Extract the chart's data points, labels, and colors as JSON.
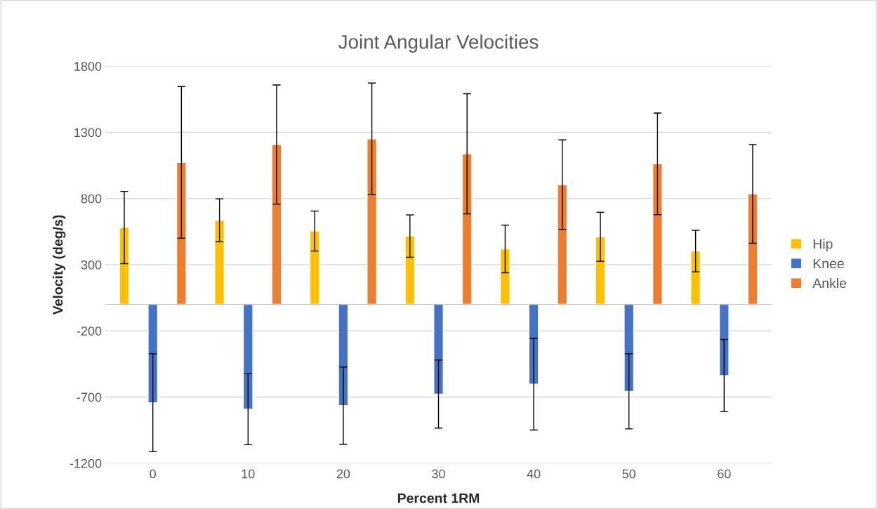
{
  "chart_data": {
    "type": "bar",
    "title": "Joint Angular Velocities",
    "xlabel": "Percent 1RM",
    "ylabel": "Velocity (deg/s)",
    "categories": [
      "0",
      "10",
      "20",
      "30",
      "40",
      "50",
      "60"
    ],
    "series": [
      {
        "name": "Hip",
        "color": "#ffc000",
        "values": [
          581,
          635,
          554,
          516,
          419,
          511,
          403
        ],
        "errors": [
          273,
          162,
          151,
          160,
          180,
          185,
          157
        ]
      },
      {
        "name": "Knee",
        "color": "#4472c4",
        "values": [
          -743,
          -792,
          -765,
          -678,
          -603,
          -657,
          -538
        ],
        "errors": [
          370,
          268,
          292,
          257,
          346,
          284,
          273
        ]
      },
      {
        "name": "Ankle",
        "color": "#ed7d31",
        "values": [
          1073,
          1208,
          1251,
          1138,
          905,
          1062,
          835
        ],
        "errors": [
          573,
          450,
          422,
          454,
          338,
          384,
          373
        ]
      }
    ],
    "ylim": [
      -1200,
      1800
    ],
    "yticks": [
      -1200,
      -700,
      -200,
      300,
      800,
      1300,
      1800
    ],
    "grid": "y",
    "legend": "right"
  }
}
